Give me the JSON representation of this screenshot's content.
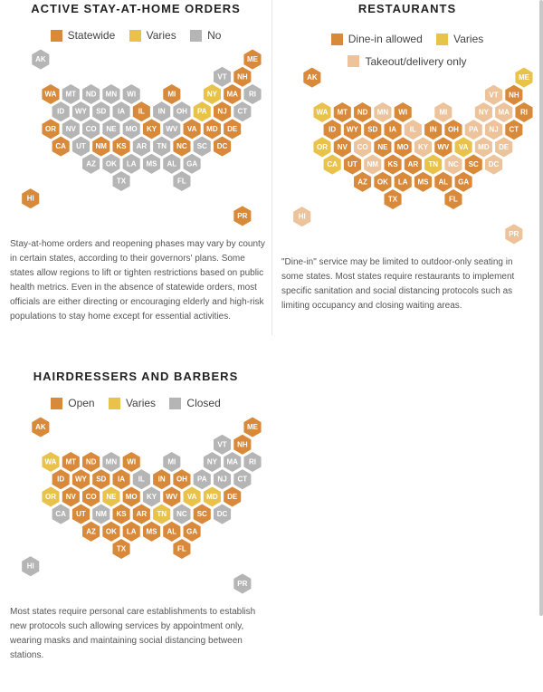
{
  "colors": {
    "orange": "#d8893a",
    "yellow": "#e9c24a",
    "gray": "#b5b5b5",
    "peach": "#ecc39a"
  },
  "panels": [
    {
      "id": "stay",
      "title": "ACTIVE STAY-AT-HOME ORDERS",
      "legend": [
        {
          "label": "Statewide",
          "color": "orange"
        },
        {
          "label": "Varies",
          "color": "yellow"
        },
        {
          "label": "No",
          "color": "gray"
        }
      ],
      "states": {
        "AK": "gray",
        "ME": "orange",
        "VT": "gray",
        "NH": "orange",
        "WA": "orange",
        "MT": "gray",
        "ND": "gray",
        "MN": "gray",
        "WI": "gray",
        "MI": "orange",
        "NY": "yellow",
        "MA": "orange",
        "RI": "gray",
        "ID": "gray",
        "WY": "gray",
        "SD": "gray",
        "IA": "gray",
        "IL": "orange",
        "IN": "gray",
        "OH": "gray",
        "PA": "yellow",
        "NJ": "orange",
        "CT": "gray",
        "OR": "orange",
        "NV": "gray",
        "CO": "gray",
        "NE": "gray",
        "MO": "gray",
        "KY": "orange",
        "WV": "gray",
        "VA": "orange",
        "MD": "orange",
        "DE": "orange",
        "CA": "orange",
        "UT": "gray",
        "NM": "orange",
        "KS": "orange",
        "AR": "gray",
        "TN": "gray",
        "NC": "orange",
        "SC": "gray",
        "DC": "orange",
        "AZ": "gray",
        "OK": "gray",
        "LA": "gray",
        "MS": "gray",
        "AL": "gray",
        "GA": "gray",
        "TX": "gray",
        "FL": "gray",
        "HI": "orange",
        "PR": "orange"
      },
      "note": "Stay-at-home orders and reopening phases may vary by county in certain states, according to their governors' plans. Some states allow regions to lift or tighten restrictions based on public health metrics. Even in the absence of statewide orders, most officials are either directing or encouraging elderly and high-risk populations to stay home except for essential activities."
    },
    {
      "id": "restaurants",
      "title": "RESTAURANTS",
      "legend": [
        {
          "label": "Dine-in allowed",
          "color": "orange"
        },
        {
          "label": "Varies",
          "color": "yellow"
        },
        {
          "label": "Takeout/delivery only",
          "color": "peach"
        }
      ],
      "states": {
        "AK": "orange",
        "ME": "yellow",
        "VT": "peach",
        "NH": "orange",
        "WA": "yellow",
        "MT": "orange",
        "ND": "orange",
        "MN": "peach",
        "WI": "orange",
        "MI": "peach",
        "NY": "peach",
        "MA": "peach",
        "RI": "orange",
        "ID": "orange",
        "WY": "orange",
        "SD": "orange",
        "IA": "orange",
        "IL": "peach",
        "IN": "orange",
        "OH": "orange",
        "PA": "peach",
        "NJ": "peach",
        "CT": "orange",
        "OR": "yellow",
        "NV": "orange",
        "CO": "peach",
        "NE": "orange",
        "MO": "orange",
        "KY": "peach",
        "WV": "orange",
        "VA": "yellow",
        "MD": "peach",
        "DE": "peach",
        "CA": "yellow",
        "UT": "orange",
        "NM": "peach",
        "KS": "orange",
        "AR": "orange",
        "TN": "yellow",
        "NC": "peach",
        "SC": "orange",
        "DC": "peach",
        "AZ": "orange",
        "OK": "orange",
        "LA": "orange",
        "MS": "orange",
        "AL": "orange",
        "GA": "orange",
        "TX": "orange",
        "FL": "orange",
        "HI": "peach",
        "PR": "peach"
      },
      "note": "\"Dine-in\" service may be limited to outdoor-only seating in some states. Most states require restaurants to implement specific sanitation and social distancing protocols such as limiting occupancy and closing waiting areas."
    },
    {
      "id": "hair",
      "title": "HAIRDRESSERS AND BARBERS",
      "legend": [
        {
          "label": "Open",
          "color": "orange"
        },
        {
          "label": "Varies",
          "color": "yellow"
        },
        {
          "label": "Closed",
          "color": "gray"
        }
      ],
      "states": {
        "AK": "orange",
        "ME": "orange",
        "VT": "gray",
        "NH": "orange",
        "WA": "yellow",
        "MT": "orange",
        "ND": "orange",
        "MN": "gray",
        "WI": "orange",
        "MI": "gray",
        "NY": "gray",
        "MA": "gray",
        "RI": "gray",
        "ID": "orange",
        "WY": "orange",
        "SD": "orange",
        "IA": "orange",
        "IL": "gray",
        "IN": "orange",
        "OH": "orange",
        "PA": "gray",
        "NJ": "gray",
        "CT": "gray",
        "OR": "yellow",
        "NV": "orange",
        "CO": "orange",
        "NE": "yellow",
        "MO": "orange",
        "KY": "gray",
        "WV": "orange",
        "VA": "yellow",
        "MD": "yellow",
        "DE": "orange",
        "CA": "gray",
        "UT": "orange",
        "NM": "gray",
        "KS": "orange",
        "AR": "orange",
        "TN": "yellow",
        "NC": "gray",
        "SC": "orange",
        "DC": "gray",
        "AZ": "orange",
        "OK": "orange",
        "LA": "orange",
        "MS": "orange",
        "AL": "orange",
        "GA": "orange",
        "TX": "orange",
        "FL": "orange",
        "HI": "gray",
        "PR": "gray"
      },
      "note": "Most states require personal care establishments to establish new protocols such allowing services by appointment only, wearing masks and maintaining social distancing between stations."
    }
  ]
}
